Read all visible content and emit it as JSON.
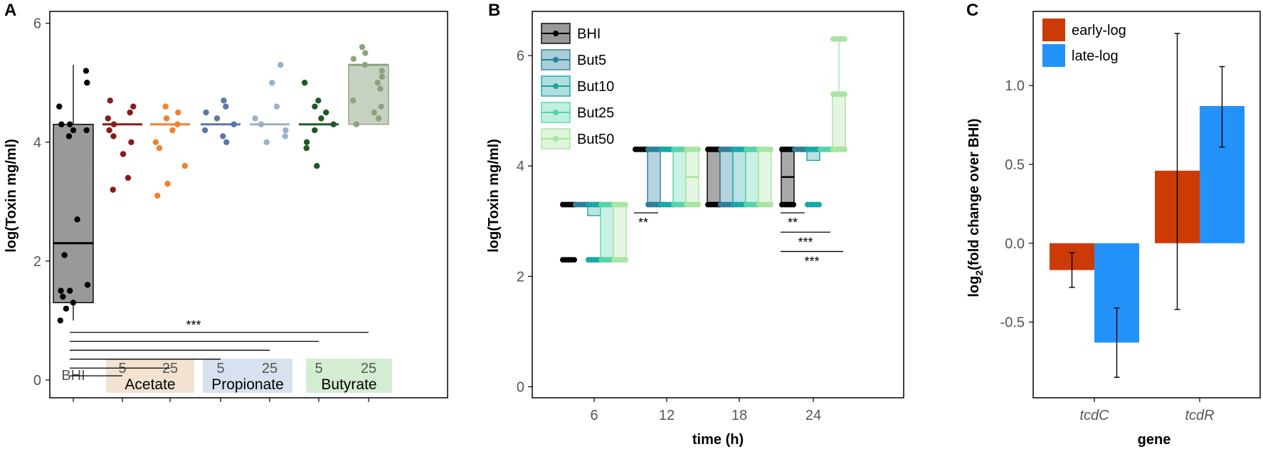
{
  "panels": [
    {
      "letter": "A"
    },
    {
      "letter": "B"
    },
    {
      "letter": "C"
    }
  ],
  "chart_data": [
    {
      "panel": "A",
      "type": "box",
      "title": "",
      "ylabel": "log(Toxin mg/ml)",
      "ylim": [
        -0.3,
        6.2
      ],
      "yticks": [
        0,
        2,
        4,
        6
      ],
      "grid": false,
      "categories": [
        {
          "label": "BHI",
          "group": "",
          "color": "#000000"
        },
        {
          "label": "5",
          "group": "Acetate",
          "color": "#8b1a1a"
        },
        {
          "label": "25",
          "group": "Acetate",
          "color": "#f28030"
        },
        {
          "label": "5",
          "group": "Propionate",
          "color": "#5b76a8"
        },
        {
          "label": "25",
          "group": "Propionate",
          "color": "#9ab0cc"
        },
        {
          "label": "5",
          "group": "Butyrate",
          "color": "#1e5a26"
        },
        {
          "label": "25",
          "group": "Butyrate",
          "color": "#8aa480"
        }
      ],
      "groups": [
        {
          "name": "Acetate",
          "color": "#f1e2d1"
        },
        {
          "name": "Propionate",
          "color": "#d8e1ef"
        },
        {
          "name": "Butyrate",
          "color": "#d4edd2"
        }
      ],
      "boxes": [
        {
          "q1": 1.3,
          "median": 2.3,
          "q3": 4.3,
          "whisker_low": 1.0,
          "whisker_high": 5.3,
          "fill": "#999999"
        },
        {
          "q1": 4.3,
          "median": 4.3,
          "q3": 4.3
        },
        {
          "q1": 4.3,
          "median": 4.3,
          "q3": 4.3
        },
        {
          "q1": 4.3,
          "median": 4.3,
          "q3": 4.3
        },
        {
          "q1": 4.3,
          "median": 4.3,
          "q3": 4.3
        },
        {
          "q1": 4.3,
          "median": 4.3,
          "q3": 4.3
        },
        {
          "q1": 4.3,
          "median": 5.3,
          "q3": 5.3,
          "fill": "#c7d1c2"
        }
      ],
      "points": [
        [
          5.2,
          5.0,
          4.6,
          4.3,
          4.2,
          4.3,
          4.1,
          4.2,
          2.7,
          2.1,
          1.5,
          1.6,
          1.5,
          1.4,
          1.3,
          1.2,
          1.0
        ],
        [
          4.7,
          4.6,
          4.5,
          4.4,
          4.3,
          4.2,
          4.0,
          4.1,
          3.8,
          3.4,
          3.2
        ],
        [
          4.6,
          4.5,
          4.4,
          4.3,
          4.2,
          4.0,
          3.9,
          3.6,
          3.3,
          3.1
        ],
        [
          4.7,
          4.6,
          4.5,
          4.4,
          4.3,
          4.2,
          4.1,
          4.0
        ],
        [
          5.3,
          5.0,
          4.6,
          4.4,
          4.3,
          4.2,
          4.1,
          4.0
        ],
        [
          5.0,
          4.7,
          4.6,
          4.5,
          4.4,
          4.3,
          4.2,
          4.0,
          3.9,
          3.6
        ],
        [
          5.6,
          5.5,
          5.4,
          5.3,
          5.2,
          5.1,
          5.0,
          4.9,
          4.7,
          4.6,
          4.5,
          4.4,
          4.3
        ]
      ],
      "significance": {
        "label": "***",
        "brackets": [
          {
            "from": 0,
            "to": 1,
            "y": 0.07
          },
          {
            "from": 0,
            "to": 2,
            "y": 0.2
          },
          {
            "from": 0,
            "to": 3,
            "y": 0.35
          },
          {
            "from": 0,
            "to": 4,
            "y": 0.5
          },
          {
            "from": 0,
            "to": 5,
            "y": 0.65
          },
          {
            "from": 0,
            "to": 6,
            "y": 0.8
          }
        ]
      }
    },
    {
      "panel": "B",
      "type": "box",
      "title": "",
      "xlabel": "time (h)",
      "ylabel": "log(Toxin mg/ml)",
      "ylim": [
        -0.2,
        6.8
      ],
      "yticks": [
        0,
        2,
        4,
        6
      ],
      "grid": false,
      "x": [
        "6",
        "12",
        "18",
        "24"
      ],
      "legend_position": "top-left",
      "series": [
        {
          "name": "BHI",
          "color": "#000000",
          "fill": "#999999",
          "boxes": [
            {
              "q1": 3.3,
              "median": 3.3,
              "q3": 3.3,
              "points": [
                3.3,
                2.3
              ]
            },
            {
              "q1": 4.3,
              "median": 4.3,
              "q3": 4.3,
              "points": [
                4.3
              ]
            },
            {
              "q1": 3.3,
              "median": 3.3,
              "q3": 4.3,
              "points": [
                4.3,
                3.3
              ]
            },
            {
              "q1": 3.3,
              "median": 3.8,
              "q3": 4.3,
              "points": [
                4.3,
                3.3
              ]
            }
          ]
        },
        {
          "name": "But5",
          "color": "#2e7f99",
          "fill": "#a9cdd9",
          "boxes": [
            {
              "q1": 3.3,
              "median": 3.3,
              "q3": 3.3,
              "points": [
                3.3
              ]
            },
            {
              "q1": 3.3,
              "median": 4.3,
              "q3": 4.3,
              "points": [
                4.3,
                3.3
              ]
            },
            {
              "q1": 3.3,
              "median": 3.3,
              "q3": 4.3,
              "points": [
                4.3,
                3.3
              ]
            },
            {
              "q1": 4.3,
              "median": 4.3,
              "q3": 4.3,
              "points": [
                4.3
              ]
            }
          ]
        },
        {
          "name": "But10",
          "color": "#16a8a8",
          "fill": "#b0dede",
          "boxes": [
            {
              "q1": 3.1,
              "median": 3.3,
              "q3": 3.3,
              "points": [
                3.3,
                2.3
              ]
            },
            {
              "q1": 3.3,
              "median": 3.3,
              "q3": 3.3,
              "points": [
                4.3,
                3.3
              ]
            },
            {
              "q1": 3.3,
              "median": 3.3,
              "q3": 4.3,
              "points": [
                4.3,
                3.3
              ]
            },
            {
              "q1": 4.1,
              "median": 4.3,
              "q3": 4.3,
              "points": [
                4.3,
                3.3
              ]
            }
          ]
        },
        {
          "name": "But25",
          "color": "#55d4a8",
          "fill": "#bff0df",
          "boxes": [
            {
              "q1": 2.3,
              "median": 3.3,
              "q3": 3.3,
              "points": [
                3.3,
                2.3
              ]
            },
            {
              "q1": 3.3,
              "median": 4.3,
              "q3": 4.3,
              "points": [
                4.3,
                3.3
              ]
            },
            {
              "q1": 3.3,
              "median": 4.3,
              "q3": 4.3,
              "points": [
                4.3,
                3.3
              ]
            },
            {
              "q1": 4.3,
              "median": 4.3,
              "q3": 4.3,
              "points": [
                4.3
              ]
            }
          ]
        },
        {
          "name": "But50",
          "color": "#a8e4a2",
          "fill": "#dff5dc",
          "boxes": [
            {
              "q1": 2.3,
              "median": 2.3,
              "q3": 3.3,
              "points": [
                3.3,
                2.3
              ]
            },
            {
              "q1": 3.3,
              "median": 3.8,
              "q3": 4.3,
              "points": [
                4.3,
                3.3
              ]
            },
            {
              "q1": 3.3,
              "median": 4.3,
              "q3": 4.3,
              "points": [
                4.3,
                3.3
              ]
            },
            {
              "q1": 4.3,
              "median": 5.3,
              "q3": 5.3,
              "whisker_high": 6.3,
              "points": [
                6.3,
                5.3,
                4.3
              ]
            }
          ]
        }
      ],
      "significance": [
        {
          "x": "12",
          "label": "**",
          "from": 0,
          "to": 1,
          "y": 3.15
        },
        {
          "x": "24",
          "label": "**",
          "from": 0,
          "to": 1,
          "y": 3.15
        },
        {
          "x": "24",
          "label": "***",
          "from": 0,
          "to": 3,
          "y": 2.8
        },
        {
          "x": "24",
          "label": "***",
          "from": 0,
          "to": 4,
          "y": 2.45
        }
      ]
    },
    {
      "panel": "C",
      "type": "bar",
      "title": "",
      "xlabel": "gene",
      "ylabel": "log2(fold change over BHI)",
      "ylabel_parts": {
        "pre": "log",
        "sub": "2",
        "post": "(fold change over BHI)"
      },
      "ylim": [
        -0.98,
        1.47
      ],
      "yticks": [
        "-0.5",
        "0.0",
        "0.5",
        "1.0"
      ],
      "grid": false,
      "categories": [
        "tcdC",
        "tcdR"
      ],
      "legend_position": "top-left",
      "series": [
        {
          "name": "early-log",
          "color": "#cc3b06",
          "values": [
            -0.17,
            0.46
          ],
          "error_low": [
            -0.28,
            -0.42
          ],
          "error_high": [
            -0.06,
            1.33
          ]
        },
        {
          "name": "late-log",
          "color": "#2392f8",
          "values": [
            -0.63,
            0.87
          ],
          "error_low": [
            -0.85,
            0.61
          ],
          "error_high": [
            -0.41,
            1.12
          ]
        }
      ]
    }
  ]
}
